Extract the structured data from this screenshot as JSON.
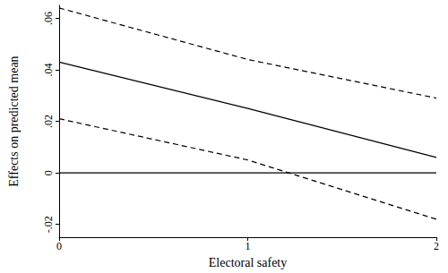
{
  "chart_data": {
    "type": "line",
    "x_label": "Electoral safety",
    "y_label": "Effects on predicted mean",
    "x": [
      0,
      1,
      2
    ],
    "series": [
      {
        "color": "#000000",
        "line_style": "dashed",
        "values": [
          0.064,
          0.044,
          0.029
        ]
      },
      {
        "color": "#000000",
        "line_style": "solid",
        "values": [
          0.043,
          0.025,
          0.006
        ]
      },
      {
        "color": "#000000",
        "line_style": "dashed",
        "values": [
          0.021,
          0.005,
          -0.018
        ]
      },
      {
        "color": "#000000",
        "line_style": "solid",
        "values": [
          0,
          0,
          0
        ]
      }
    ],
    "xlim": [
      0,
      2
    ],
    "xticks": [
      0,
      1,
      2
    ],
    "ylim": [
      -0.025,
      0.065
    ],
    "yticks": [
      {
        "value": -0.02,
        "label": "-.02"
      },
      0,
      {
        "value": 0.02,
        "label": ".02"
      },
      {
        "value": 0.04,
        "label": ".04"
      },
      {
        "value": 0.06,
        "label": ".06"
      }
    ],
    "grid": false
  }
}
